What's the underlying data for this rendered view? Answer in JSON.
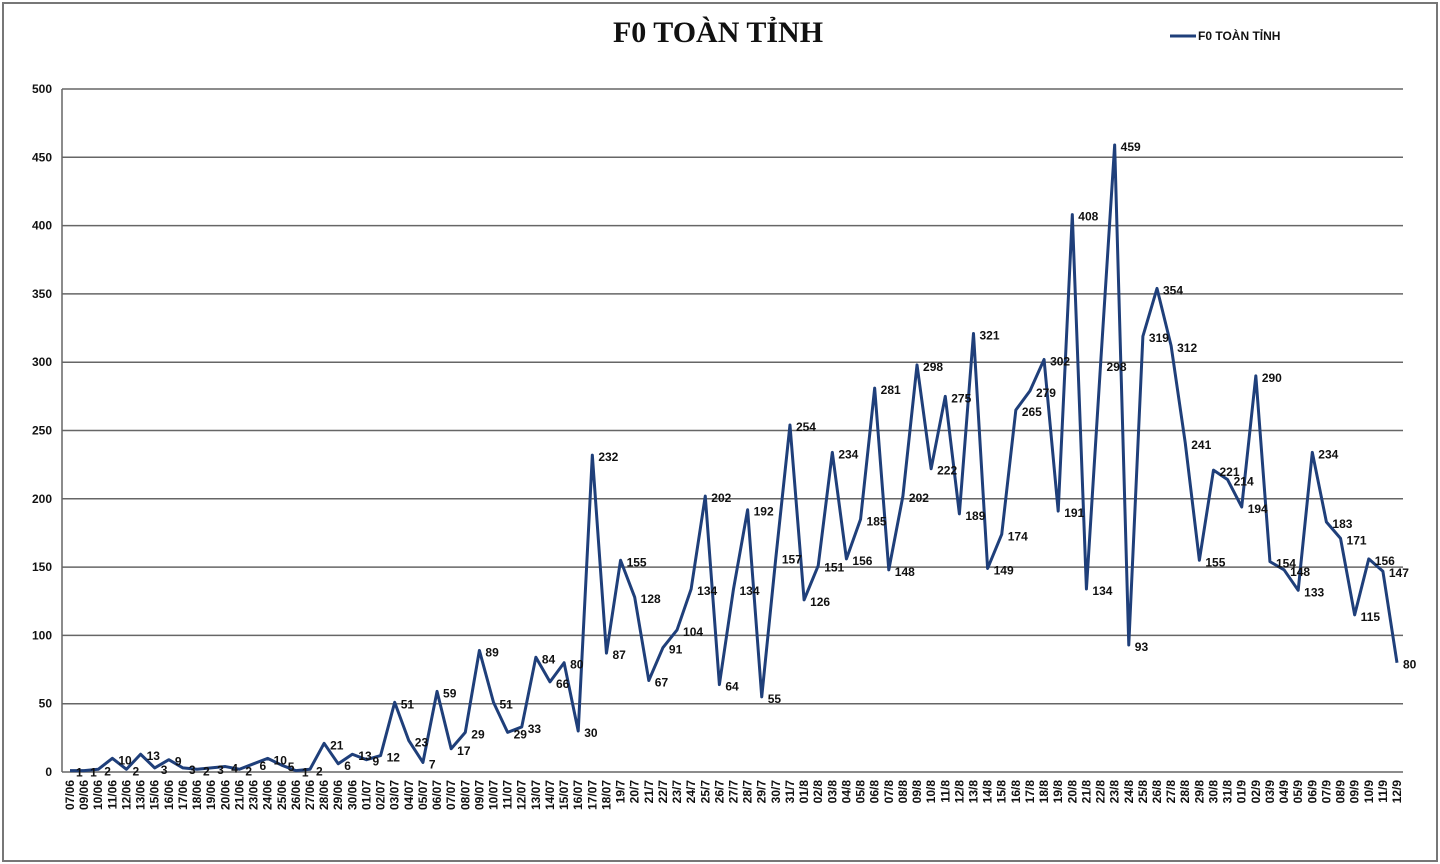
{
  "chart_data": {
    "type": "line",
    "title": "F0 TOÀN TỈNH",
    "categories": [
      "07/06",
      "09/06",
      "10/06",
      "11/06",
      "12/06",
      "13/06",
      "15/06",
      "16/06",
      "17/06",
      "18/06",
      "19/06",
      "20/06",
      "21/06",
      "23/06",
      "24/06",
      "25/06",
      "26/06",
      "27/06",
      "28/06",
      "29/06",
      "30/06",
      "01/07",
      "02/07",
      "03/07",
      "04/07",
      "05/07",
      "06/07",
      "07/07",
      "08/07",
      "09/07",
      "10/07",
      "11/07",
      "12/07",
      "13/07",
      "14/07",
      "15/07",
      "16/07",
      "17/07",
      "18/07",
      "19/7",
      "20/7",
      "21/7",
      "22/7",
      "23/7",
      "24/7",
      "25/7",
      "26/7",
      "27/7",
      "28/7",
      "29/7",
      "30/7",
      "31/7",
      "01/8",
      "02/8",
      "03/8",
      "04/8",
      "05/8",
      "06/8",
      "07/8",
      "08/8",
      "09/8",
      "10/8",
      "11/8",
      "12/8",
      "13/8",
      "14/8",
      "15/8",
      "16/8",
      "17/8",
      "18/8",
      "19/8",
      "20/8",
      "21/8",
      "22/8",
      "23/8",
      "24/8",
      "25/8",
      "26/8",
      "27/8",
      "28/8",
      "29/8",
      "30/8",
      "31/8",
      "01/9",
      "02/9",
      "03/9",
      "04/9",
      "05/9",
      "06/9",
      "07/9",
      "08/9",
      "09/9",
      "10/9",
      "11/9",
      "12/9"
    ],
    "series": [
      {
        "name": "F0 TOÀN TỈNH",
        "color": "#1f3f7a",
        "values": [
          1,
          1,
          2,
          10,
          2,
          13,
          3,
          9,
          3,
          2,
          3,
          4,
          2,
          6,
          10,
          5,
          1,
          2,
          21,
          6,
          13,
          9,
          12,
          51,
          23,
          7,
          59,
          17,
          29,
          89,
          51,
          29,
          33,
          84,
          66,
          80,
          30,
          232,
          87,
          155,
          128,
          67,
          91,
          104,
          134,
          202,
          64,
          134,
          192,
          55,
          157,
          254,
          126,
          151,
          234,
          156,
          185,
          281,
          148,
          202,
          298,
          222,
          275,
          189,
          321,
          149,
          174,
          265,
          279,
          302,
          191,
          408,
          134,
          298,
          459,
          93,
          319,
          354,
          312,
          241,
          155,
          221,
          214,
          194,
          290,
          154,
          148,
          133,
          234,
          183,
          171,
          115,
          156,
          147,
          80
        ]
      }
    ],
    "ylim": [
      0,
      500
    ],
    "yticks": [
      0,
      50,
      100,
      150,
      200,
      250,
      300,
      350,
      400,
      450,
      500
    ],
    "grid": true,
    "legend": "top-right"
  }
}
